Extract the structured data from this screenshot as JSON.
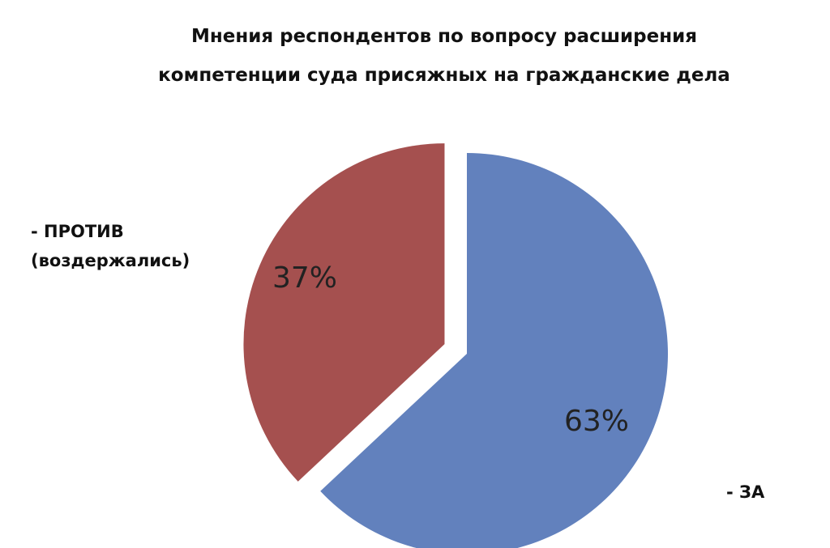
{
  "chart_data": {
    "type": "pie",
    "title": [
      "Мнения респондентов по вопросу расширения",
      "компетенции суда присяжных на гражданские дела"
    ],
    "categories": [
      "- ЗА",
      "- ПРОТИВ (воздержались)"
    ],
    "values": [
      63,
      37
    ],
    "value_labels": [
      "63%",
      "37%"
    ],
    "colors": [
      "#6281bd",
      "#a5504f"
    ]
  }
}
